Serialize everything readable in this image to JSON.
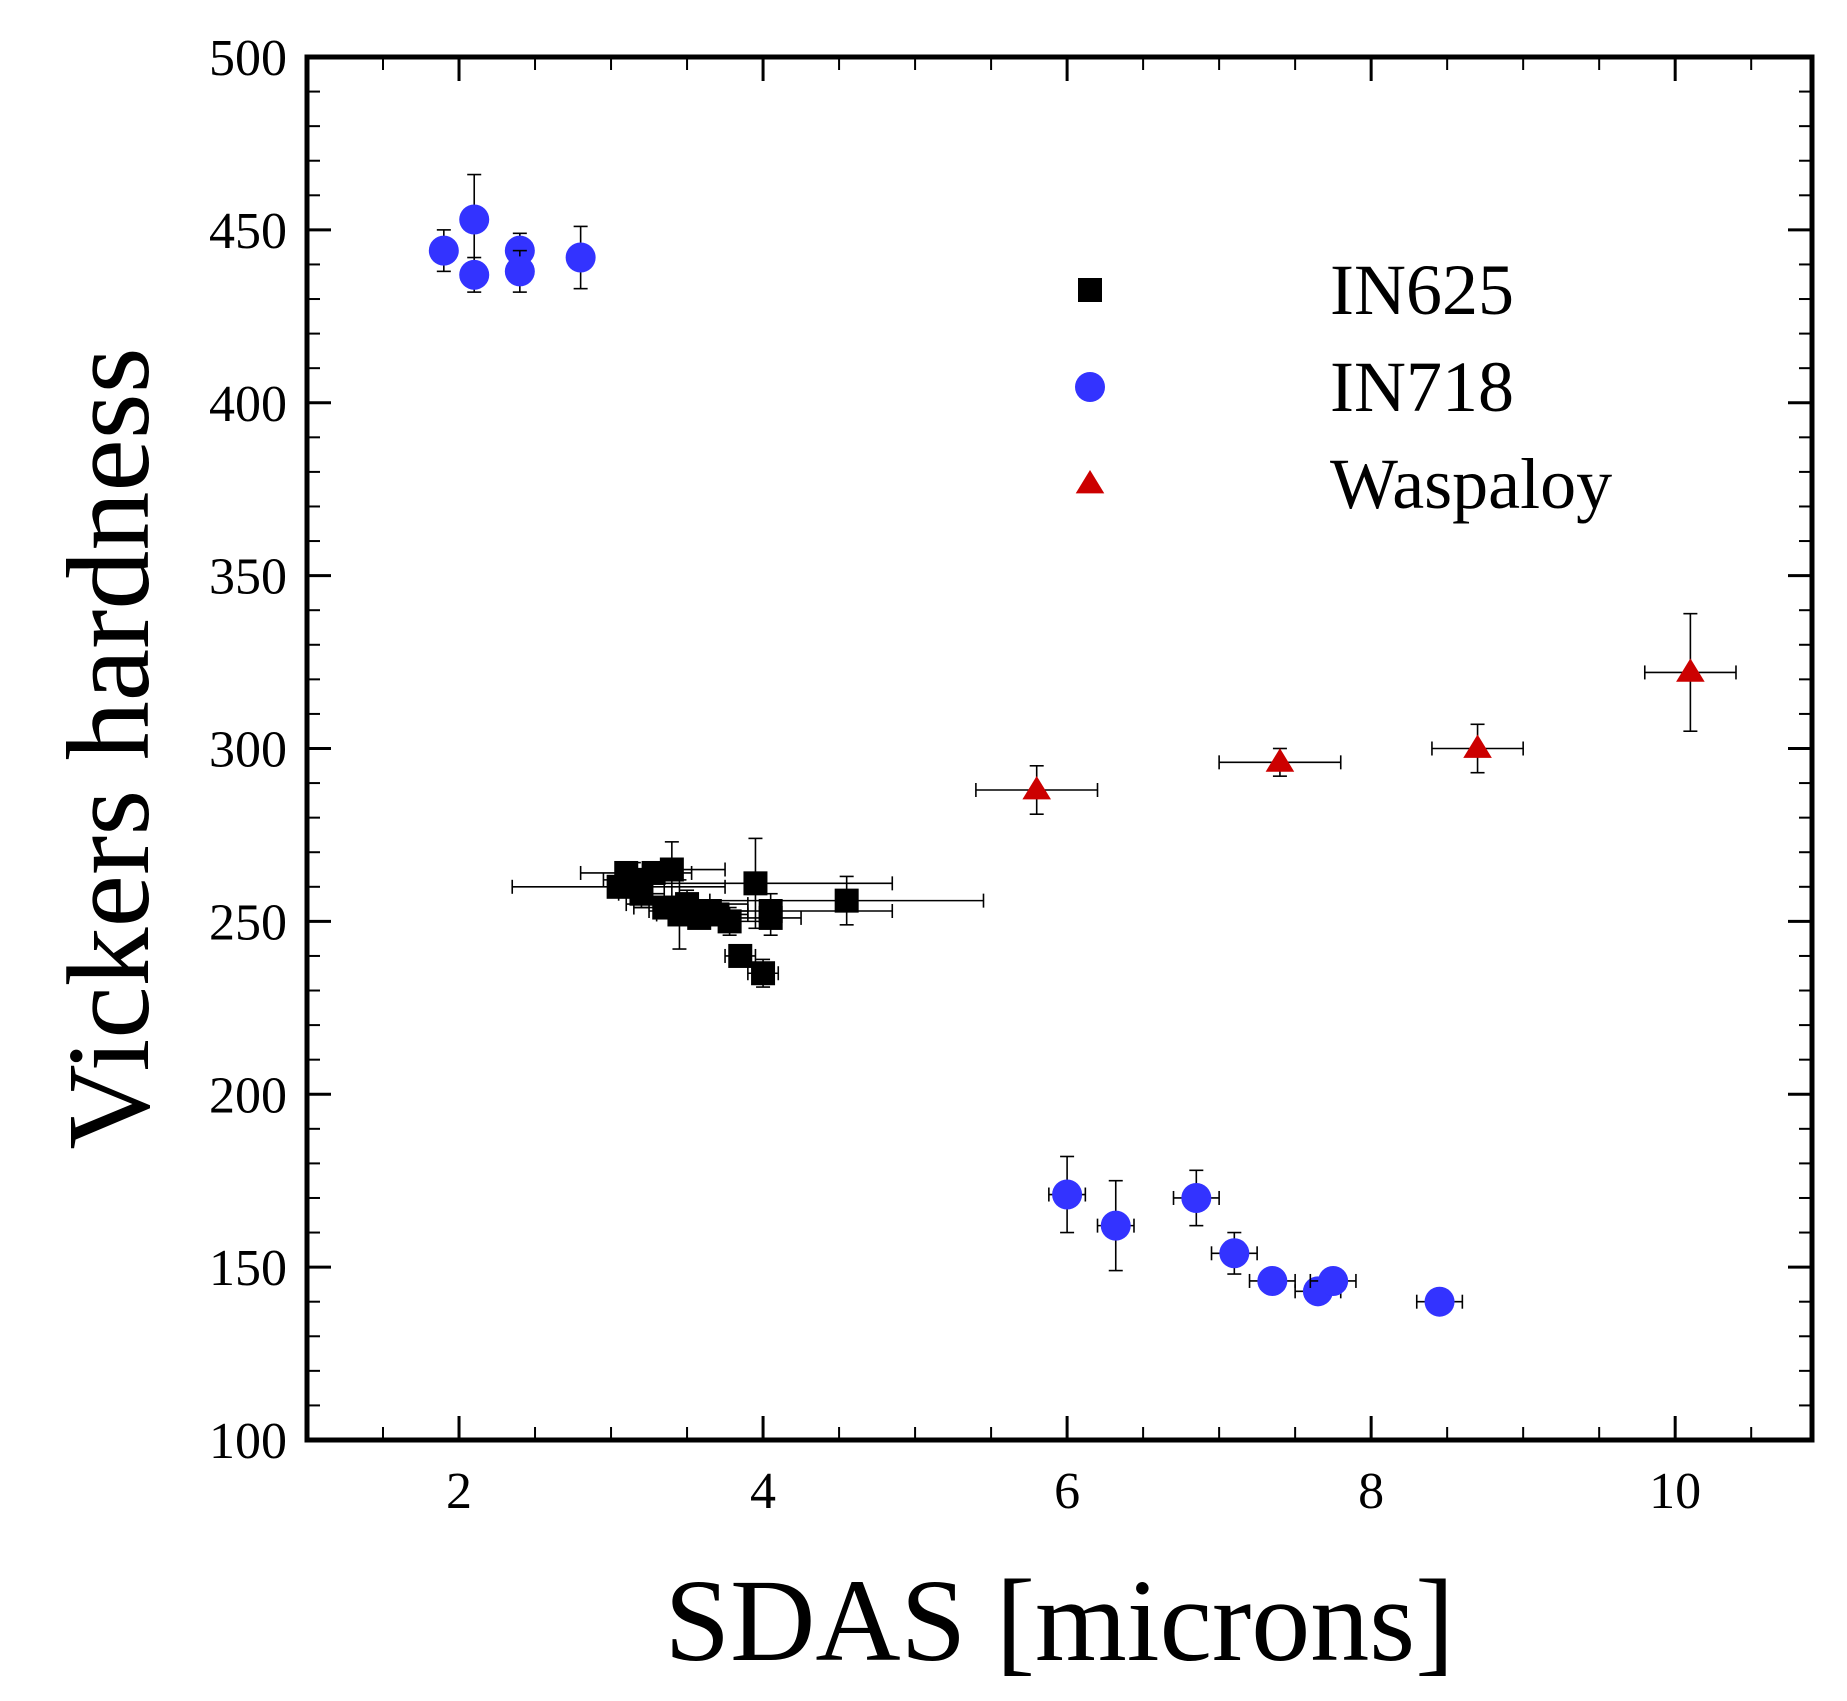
{
  "chart_data": {
    "type": "scatter",
    "title": "",
    "xlabel": "SDAS [microns]",
    "ylabel": "Vickers hardness",
    "xlim": [
      1.0,
      10.9
    ],
    "ylim": [
      100,
      500
    ],
    "xticks": [
      2,
      4,
      6,
      8,
      10
    ],
    "xtick_labels": [
      "2",
      "4",
      "6",
      "8",
      "10"
    ],
    "yticks": [
      100,
      150,
      200,
      250,
      300,
      350,
      400,
      450,
      500
    ],
    "ytick_labels": [
      "100",
      "150",
      "200",
      "250",
      "300",
      "350",
      "400",
      "450",
      "500"
    ],
    "legend_position": "top-right",
    "series": [
      {
        "name": "IN625",
        "marker": "square",
        "color": "#000000",
        "points": [
          {
            "x": 3.05,
            "y": 260,
            "xerr": 0.7,
            "yerr": 3
          },
          {
            "x": 3.1,
            "y": 264,
            "xerr": 0.3,
            "yerr": 3
          },
          {
            "x": 3.15,
            "y": 262,
            "xerr": 0.2,
            "yerr": 5
          },
          {
            "x": 3.2,
            "y": 258,
            "xerr": 0.15,
            "yerr": 4
          },
          {
            "x": 3.28,
            "y": 264,
            "xerr": 0.25,
            "yerr": 3
          },
          {
            "x": 3.35,
            "y": 254,
            "xerr": 0.2,
            "yerr": 3
          },
          {
            "x": 3.4,
            "y": 265,
            "xerr": 0.35,
            "yerr": 8
          },
          {
            "x": 3.45,
            "y": 252,
            "xerr": 0.15,
            "yerr": 10
          },
          {
            "x": 3.5,
            "y": 255,
            "xerr": 0.4,
            "yerr": 4
          },
          {
            "x": 3.58,
            "y": 251,
            "xerr": 0.2,
            "yerr": 3
          },
          {
            "x": 3.65,
            "y": 253,
            "xerr": 0.25,
            "yerr": 3
          },
          {
            "x": 3.7,
            "y": 252,
            "xerr": 0.2,
            "yerr": 3
          },
          {
            "x": 3.78,
            "y": 250,
            "xerr": 0.2,
            "yerr": 4
          },
          {
            "x": 3.85,
            "y": 240,
            "xerr": 0.1,
            "yerr": 3
          },
          {
            "x": 3.95,
            "y": 261,
            "xerr": 0.9,
            "yerr": 13
          },
          {
            "x": 4.0,
            "y": 235,
            "xerr": 0.1,
            "yerr": 4
          },
          {
            "x": 4.05,
            "y": 253,
            "xerr": 0.8,
            "yerr": 5
          },
          {
            "x": 4.05,
            "y": 251,
            "xerr": 0.2,
            "yerr": 5
          },
          {
            "x": 4.55,
            "y": 256,
            "xerr": 0.9,
            "yerr": 7
          }
        ]
      },
      {
        "name": "IN718",
        "marker": "circle",
        "color": "#3333ff",
        "points": [
          {
            "x": 1.9,
            "y": 444,
            "xerr": 0,
            "yerr": 6
          },
          {
            "x": 2.1,
            "y": 453,
            "xerr": 0,
            "yerr": 13
          },
          {
            "x": 2.1,
            "y": 437,
            "xerr": 0,
            "yerr": 5
          },
          {
            "x": 2.4,
            "y": 444,
            "xerr": 0,
            "yerr": 5
          },
          {
            "x": 2.4,
            "y": 438,
            "xerr": 0,
            "yerr": 6
          },
          {
            "x": 2.8,
            "y": 442,
            "xerr": 0,
            "yerr": 9
          },
          {
            "x": 6.0,
            "y": 171,
            "xerr": 0.12,
            "yerr": 11
          },
          {
            "x": 6.32,
            "y": 162,
            "xerr": 0.12,
            "yerr": 13
          },
          {
            "x": 6.85,
            "y": 170,
            "xerr": 0.15,
            "yerr": 8
          },
          {
            "x": 7.1,
            "y": 154,
            "xerr": 0.15,
            "yerr": 6
          },
          {
            "x": 7.35,
            "y": 146,
            "xerr": 0.15,
            "yerr": 3
          },
          {
            "x": 7.65,
            "y": 143,
            "xerr": 0.15,
            "yerr": 3
          },
          {
            "x": 7.75,
            "y": 146,
            "xerr": 0.15,
            "yerr": 3
          },
          {
            "x": 8.45,
            "y": 140,
            "xerr": 0.15,
            "yerr": 3
          }
        ]
      },
      {
        "name": "Waspaloy",
        "marker": "triangle",
        "color": "#cc0000",
        "points": [
          {
            "x": 5.8,
            "y": 288,
            "xerr": 0.4,
            "yerr": 7
          },
          {
            "x": 7.4,
            "y": 296,
            "xerr": 0.4,
            "yerr": 4
          },
          {
            "x": 8.7,
            "y": 300,
            "xerr": 0.3,
            "yerr": 7
          },
          {
            "x": 10.1,
            "y": 322,
            "xerr": 0.3,
            "yerr": 17
          }
        ]
      }
    ]
  }
}
